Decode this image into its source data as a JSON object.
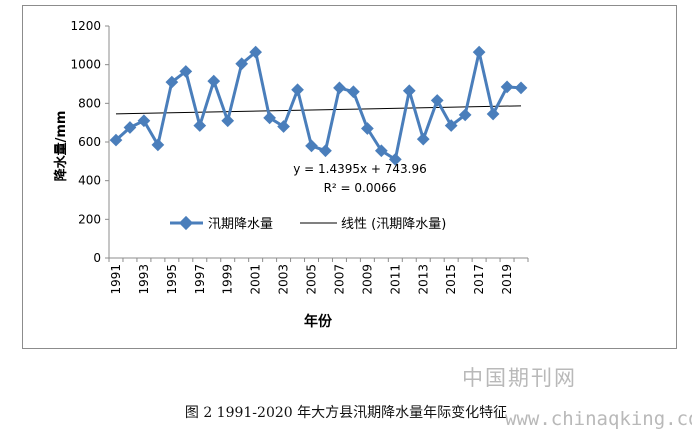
{
  "chart_data": {
    "type": "line",
    "title": "",
    "xlabel": "年份",
    "ylabel": "降水量/mm",
    "ylim": [
      0,
      1200
    ],
    "y_ticks": [
      0,
      200,
      400,
      600,
      800,
      1000,
      1200
    ],
    "x": [
      1991,
      1992,
      1993,
      1994,
      1995,
      1996,
      1997,
      1998,
      1999,
      2000,
      2001,
      2002,
      2003,
      2004,
      2005,
      2006,
      2007,
      2008,
      2009,
      2010,
      2011,
      2012,
      2013,
      2014,
      2015,
      2016,
      2017,
      2018,
      2019,
      2020
    ],
    "x_tick_labels": [
      "1991",
      "1993",
      "1995",
      "1997",
      "1999",
      "2001",
      "2003",
      "2005",
      "2007",
      "2009",
      "2011",
      "2013",
      "2015",
      "2017",
      "2019"
    ],
    "series": [
      {
        "name": "汛期降水量",
        "color": "#4a7ebb",
        "values": [
          610,
          675,
          710,
          585,
          910,
          965,
          685,
          915,
          710,
          1005,
          1065,
          725,
          680,
          870,
          580,
          555,
          880,
          860,
          670,
          555,
          510,
          865,
          615,
          815,
          685,
          740,
          1065,
          745,
          885,
          880
        ]
      }
    ],
    "trendline": {
      "name": "线性 (汛期降水量)",
      "slope": 1.4395,
      "intercept": 743.96,
      "color": "#000000"
    },
    "annotations": {
      "equation": "y = 1.4395x + 743.96",
      "r_squared": "R² = 0.0066"
    },
    "legend_position": "center",
    "grid": false
  },
  "caption": "图 2 1991-2020 年大方县汛期降水量年际变化特征",
  "watermark": {
    "cn": "中国期刊网",
    "url": "www.chinaqking.com"
  }
}
